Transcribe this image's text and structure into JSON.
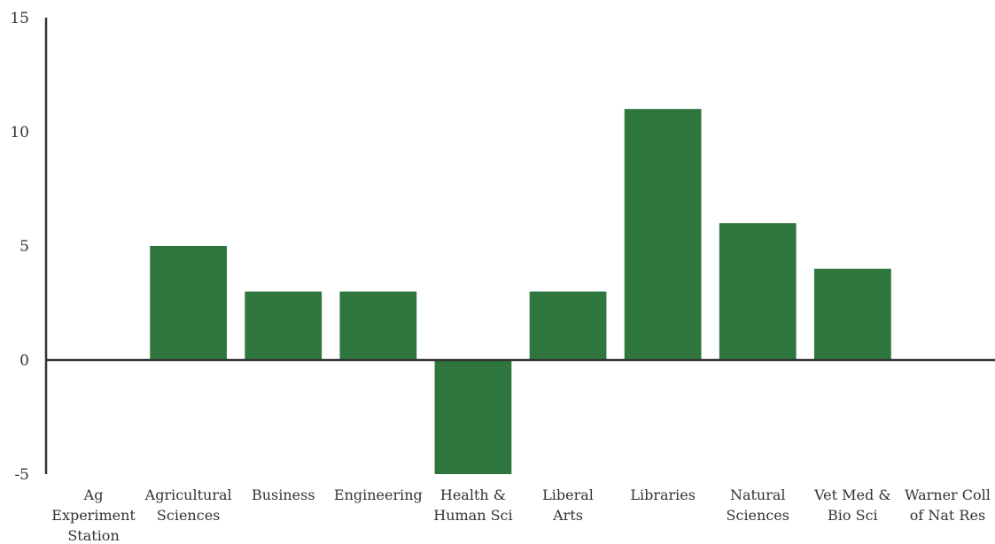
{
  "chart_data": {
    "type": "bar",
    "title": "",
    "xlabel": "",
    "ylabel": "",
    "ylim": [
      -5,
      15
    ],
    "yticks": [
      15,
      10,
      5,
      0,
      -5
    ],
    "grid": false,
    "bar_color": "#2e753e",
    "axis_color": "#333333",
    "categories": [
      "Ag Experiment Station",
      "Agricultural Sciences",
      "Business",
      "Engineering",
      "Health & Human Sci",
      "Liberal Arts",
      "Libraries",
      "Natural Sciences",
      "Vet Med & Bio Sci",
      "Warner Coll of Nat Res"
    ],
    "category_label_lines": [
      [
        "Ag",
        "Experiment",
        "Station"
      ],
      [
        "Agricultural",
        "Sciences"
      ],
      [
        "Business"
      ],
      [
        "Engineering"
      ],
      [
        "Health &",
        "Human Sci"
      ],
      [
        "Liberal",
        "Arts"
      ],
      [
        "Libraries"
      ],
      [
        "Natural",
        "Sciences"
      ],
      [
        "Vet Med &",
        "Bio Sci"
      ],
      [
        "Warner Coll",
        "of Nat Res"
      ]
    ],
    "values": [
      0,
      5,
      3,
      3,
      -5,
      3,
      11,
      6,
      4,
      0
    ]
  }
}
